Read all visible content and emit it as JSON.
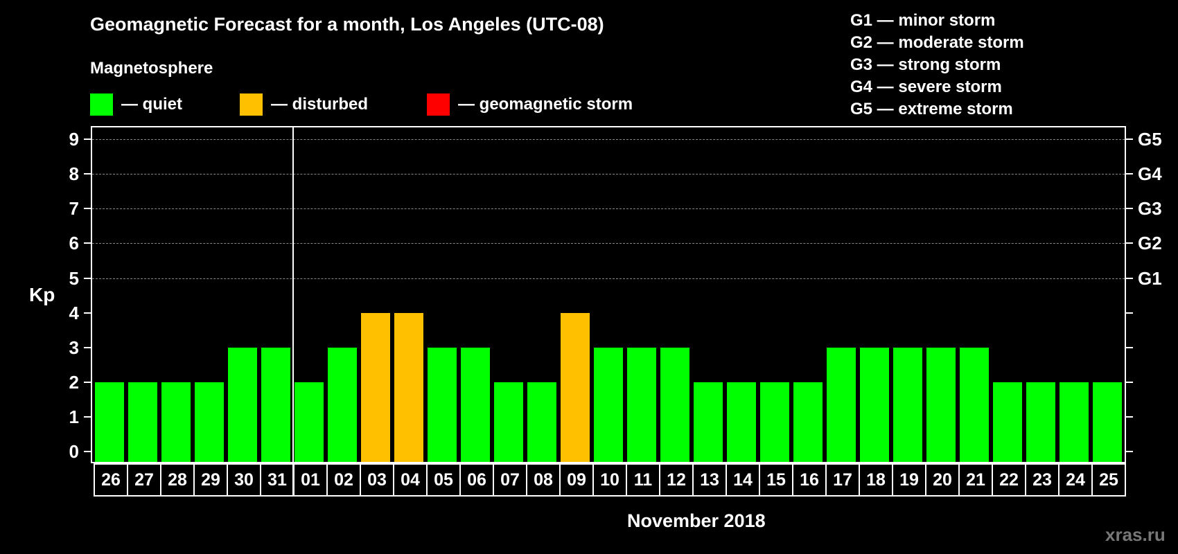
{
  "header": {
    "title": "Geomagnetic Forecast for a month, Los Angeles (UTC-08)",
    "subtitle": "Magnetosphere"
  },
  "legend": [
    {
      "label": "— quiet",
      "color": "#00ff00"
    },
    {
      "label": "— disturbed",
      "color": "#ffc000"
    },
    {
      "label": "— geomagnetic storm",
      "color": "#ff0000"
    }
  ],
  "storm_legend": [
    "G1 — minor storm",
    "G2 — moderate storm",
    "G3 — strong storm",
    "G4 — severe storm",
    "G5 — extreme storm"
  ],
  "axis": {
    "ylabel": "Kp",
    "xlabel": "November 2018",
    "right_labels": {
      "5": "G1",
      "6": "G2",
      "7": "G3",
      "8": "G4",
      "9": "G5"
    }
  },
  "watermark": "xras.ru",
  "chart_data": {
    "type": "bar",
    "title": "Geomagnetic Forecast for a month, Los Angeles (UTC-08)",
    "subtitle": "Magnetosphere",
    "xlabel": "November 2018",
    "ylabel": "Kp",
    "ylim": [
      0,
      9
    ],
    "yticks": [
      0,
      1,
      2,
      3,
      4,
      5,
      6,
      7,
      8,
      9
    ],
    "grid": "dashed horizontal at 5–9",
    "categories": [
      "26",
      "27",
      "28",
      "29",
      "30",
      "31",
      "01",
      "02",
      "03",
      "04",
      "05",
      "06",
      "07",
      "08",
      "09",
      "10",
      "11",
      "12",
      "13",
      "14",
      "15",
      "16",
      "17",
      "18",
      "19",
      "20",
      "21",
      "22",
      "23",
      "24",
      "25"
    ],
    "values": [
      2,
      2,
      2,
      2,
      3,
      3,
      2,
      3,
      4,
      4,
      3,
      3,
      2,
      2,
      4,
      3,
      3,
      3,
      2,
      2,
      2,
      2,
      3,
      3,
      3,
      3,
      3,
      2,
      2,
      2,
      2
    ],
    "status": [
      "quiet",
      "quiet",
      "quiet",
      "quiet",
      "quiet",
      "quiet",
      "quiet",
      "quiet",
      "disturbed",
      "disturbed",
      "quiet",
      "quiet",
      "quiet",
      "quiet",
      "disturbed",
      "quiet",
      "quiet",
      "quiet",
      "quiet",
      "quiet",
      "quiet",
      "quiet",
      "quiet",
      "quiet",
      "quiet",
      "quiet",
      "quiet",
      "quiet",
      "quiet",
      "quiet",
      "quiet"
    ],
    "colors": {
      "quiet": "#00ff00",
      "disturbed": "#ffc000",
      "storm": "#ff0000"
    },
    "month_divider_after": "31",
    "legend": [
      "quiet",
      "disturbed",
      "geomagnetic storm"
    ]
  }
}
